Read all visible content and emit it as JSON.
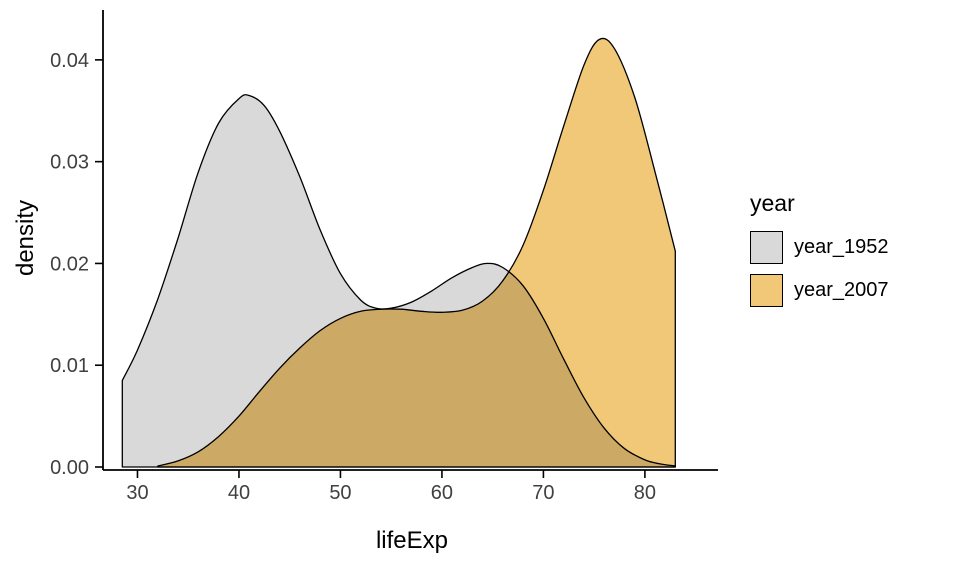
{
  "chart_data": {
    "type": "area",
    "subtype": "density",
    "title": "",
    "xlabel": "lifeExp",
    "ylabel": "density",
    "xlim": [
      26.8,
      87.4
    ],
    "ylim": [
      0,
      0.0449
    ],
    "grid": false,
    "x_ticks": [
      {
        "v": 30,
        "label": "30"
      },
      {
        "v": 40,
        "label": "40"
      },
      {
        "v": 50,
        "label": "50"
      },
      {
        "v": 60,
        "label": "60"
      },
      {
        "v": 70,
        "label": "70"
      },
      {
        "v": 80,
        "label": "80"
      }
    ],
    "y_ticks": [
      {
        "v": 0.0,
        "label": "0.00"
      },
      {
        "v": 0.01,
        "label": "0.01"
      },
      {
        "v": 0.02,
        "label": "0.02"
      },
      {
        "v": 0.03,
        "label": "0.03"
      },
      {
        "v": 0.04,
        "label": "0.04"
      }
    ],
    "legend": {
      "title": "year",
      "position": "right"
    },
    "series": [
      {
        "name": "year_1952",
        "fill": "#D9D9D9",
        "stroke": "#000000",
        "points": [
          [
            28.5,
            0.0085
          ],
          [
            30,
            0.0115
          ],
          [
            32,
            0.0165
          ],
          [
            34,
            0.0225
          ],
          [
            36,
            0.029
          ],
          [
            38,
            0.0338
          ],
          [
            40,
            0.0362
          ],
          [
            41,
            0.0365
          ],
          [
            42.5,
            0.0355
          ],
          [
            44,
            0.033
          ],
          [
            46,
            0.0285
          ],
          [
            48,
            0.0233
          ],
          [
            50,
            0.019
          ],
          [
            52,
            0.0164
          ],
          [
            53.5,
            0.0156
          ],
          [
            55,
            0.0156
          ],
          [
            57,
            0.0162
          ],
          [
            59,
            0.0173
          ],
          [
            61,
            0.0186
          ],
          [
            63,
            0.0196
          ],
          [
            64.5,
            0.02
          ],
          [
            66,
            0.0196
          ],
          [
            68,
            0.0178
          ],
          [
            70,
            0.0146
          ],
          [
            72,
            0.0106
          ],
          [
            74,
            0.0068
          ],
          [
            76,
            0.0038
          ],
          [
            78,
            0.0018
          ],
          [
            80,
            0.0007
          ],
          [
            81.5,
            0.0003
          ],
          [
            83,
            0.0001
          ]
        ]
      },
      {
        "name": "year_2007",
        "fill": "#F0C878",
        "stroke": "#000000",
        "points": [
          [
            32,
            0.0001
          ],
          [
            34,
            0.0006
          ],
          [
            36,
            0.0015
          ],
          [
            38,
            0.003
          ],
          [
            40,
            0.005
          ],
          [
            42,
            0.0074
          ],
          [
            44,
            0.0097
          ],
          [
            46,
            0.0117
          ],
          [
            48,
            0.0134
          ],
          [
            50,
            0.0146
          ],
          [
            52,
            0.0153
          ],
          [
            54,
            0.0155
          ],
          [
            56,
            0.0155
          ],
          [
            58,
            0.0153
          ],
          [
            60,
            0.0152
          ],
          [
            62,
            0.0154
          ],
          [
            64,
            0.0163
          ],
          [
            66,
            0.0183
          ],
          [
            68,
            0.0218
          ],
          [
            70,
            0.0272
          ],
          [
            72,
            0.0335
          ],
          [
            74,
            0.0395
          ],
          [
            75.5,
            0.042
          ],
          [
            77,
            0.0411
          ],
          [
            79,
            0.0363
          ],
          [
            81,
            0.029
          ],
          [
            83,
            0.0212
          ]
        ]
      }
    ]
  }
}
